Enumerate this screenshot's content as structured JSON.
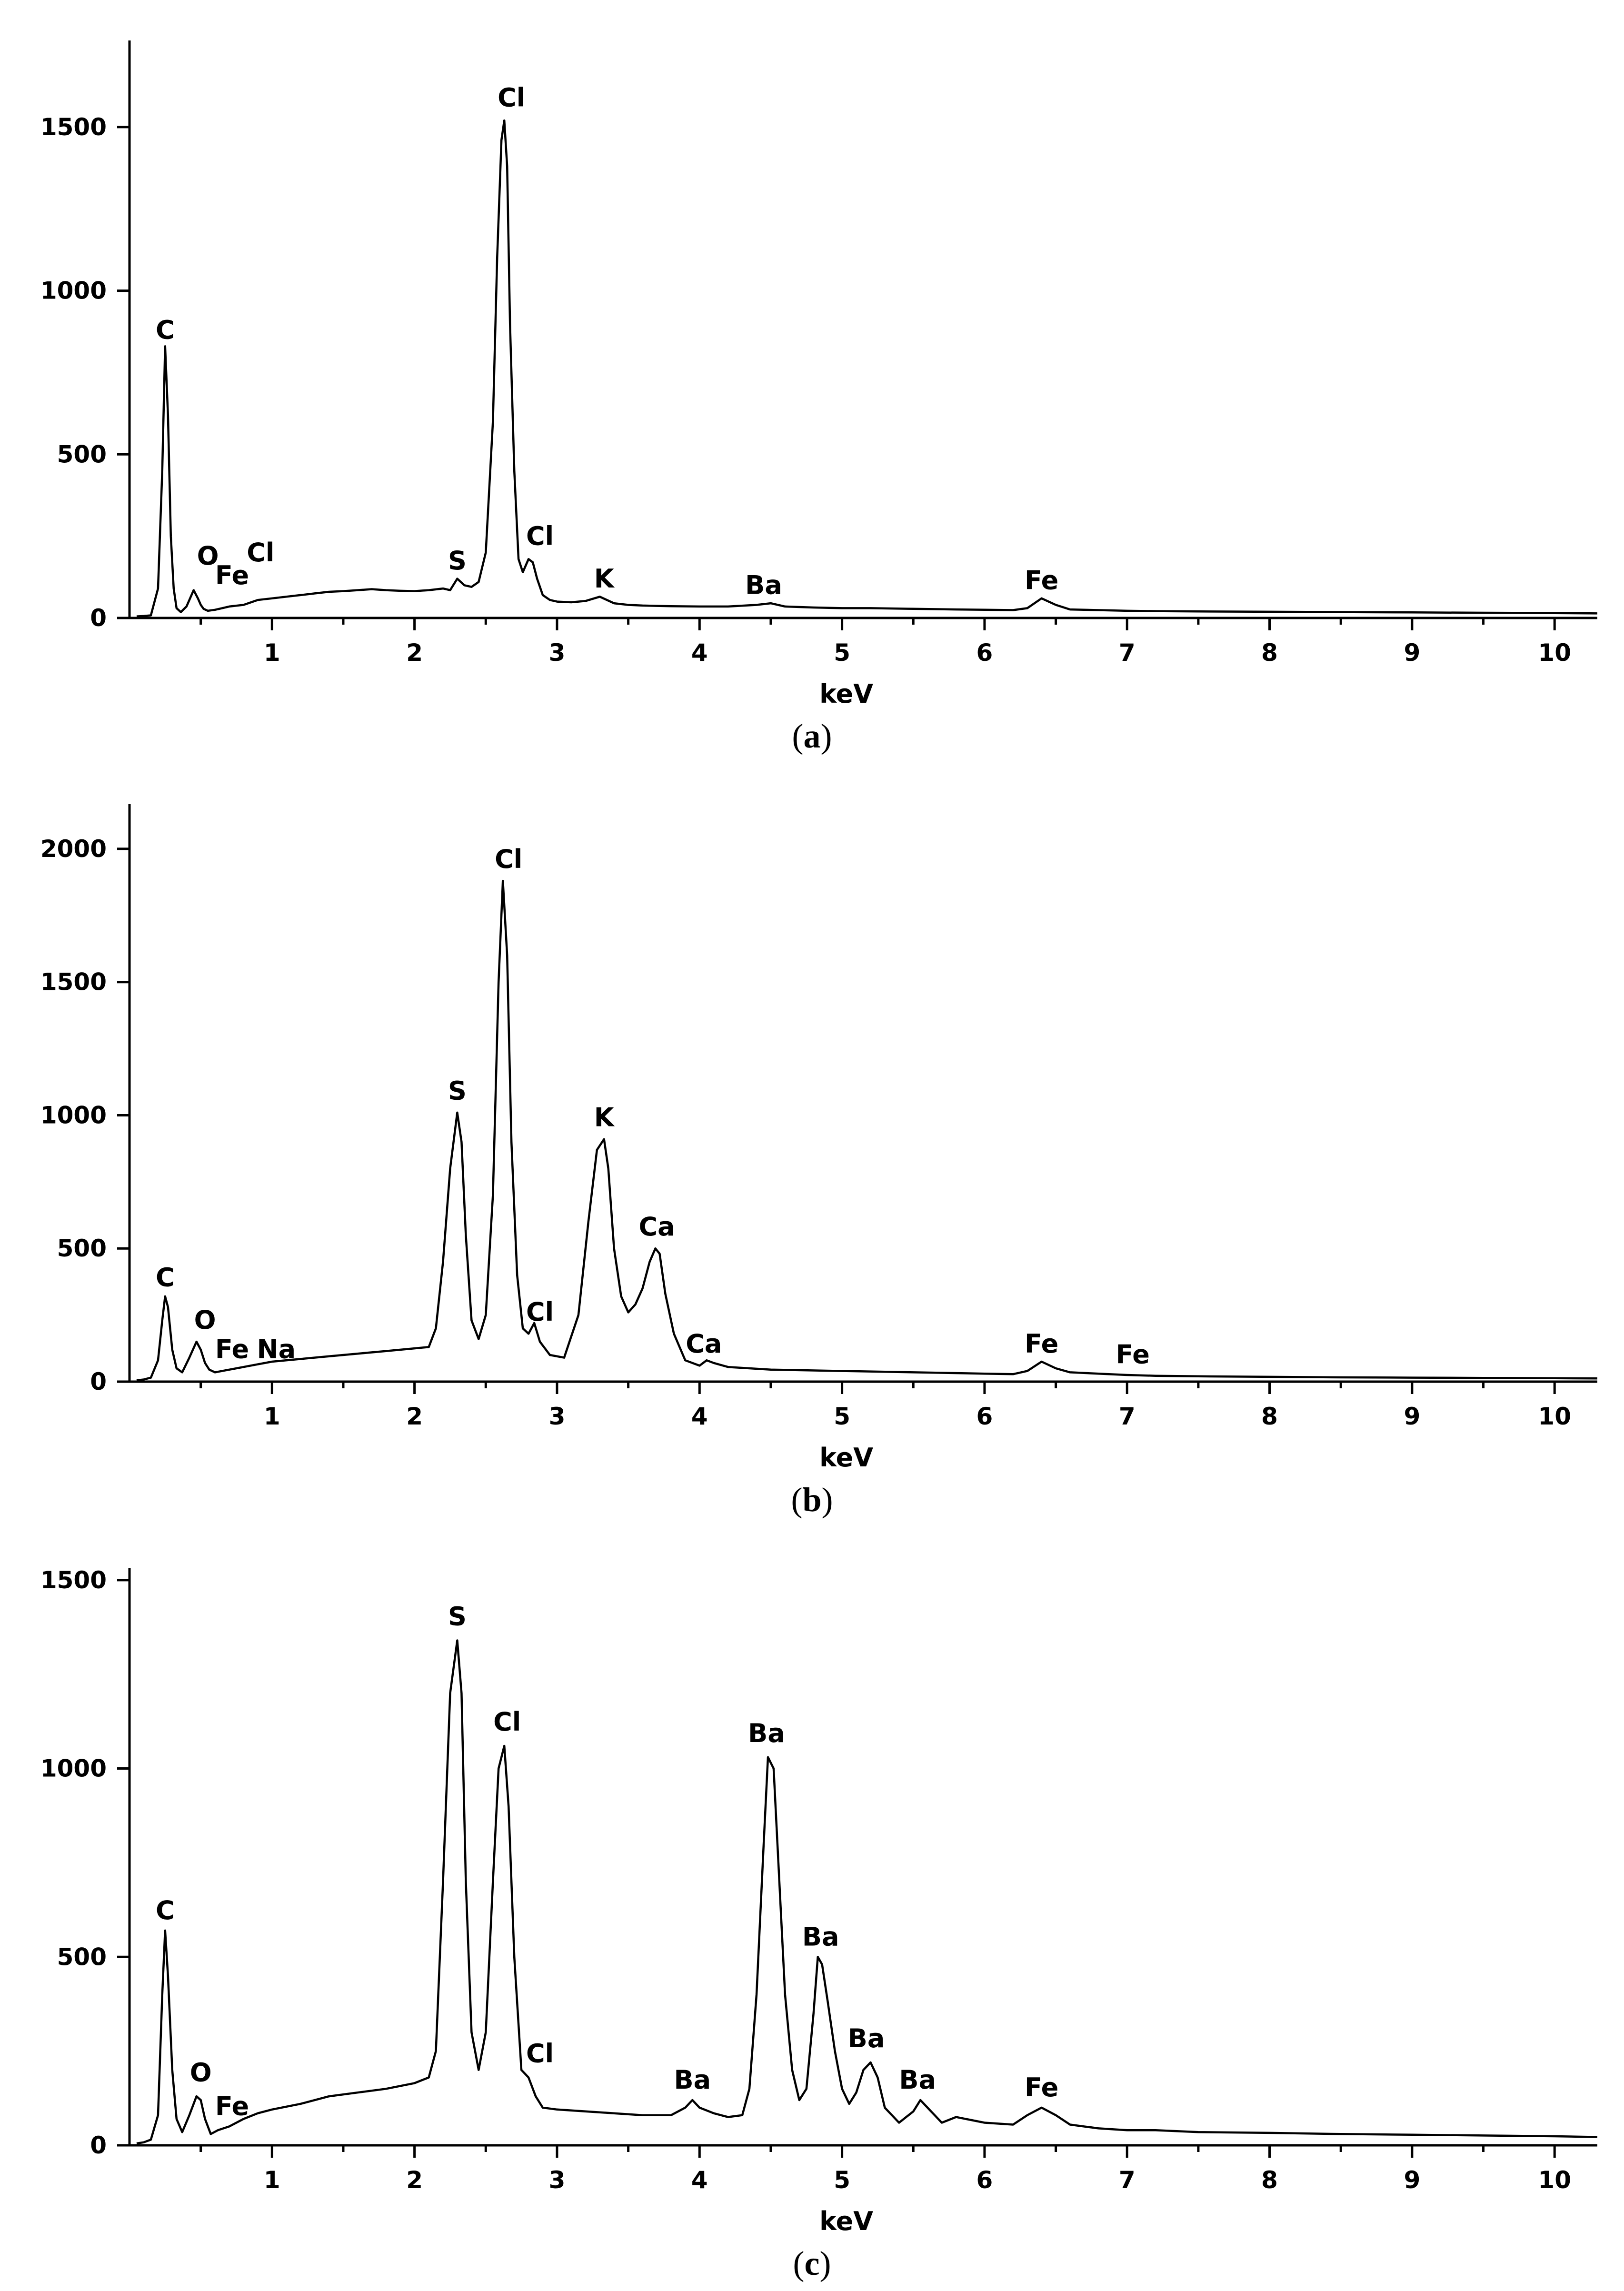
{
  "chart_data": [
    {
      "type": "line",
      "caption_label": "a",
      "xlabel": "keV",
      "ylabel": "",
      "xlim": [
        0,
        10.3
      ],
      "ylim": [
        0,
        1750
      ],
      "x_ticks": [
        1,
        2,
        3,
        4,
        5,
        6,
        7,
        8,
        9,
        10
      ],
      "y_ticks": [
        0,
        500,
        1000,
        1500
      ],
      "series": [
        {
          "x": [
            0.05,
            0.1,
            0.15,
            0.2,
            0.23,
            0.25,
            0.27,
            0.29,
            0.31,
            0.33,
            0.36,
            0.4,
            0.45,
            0.48,
            0.5,
            0.52,
            0.55,
            0.6,
            0.65,
            0.7,
            0.8,
            0.9,
            1.0,
            1.1,
            1.2,
            1.3,
            1.4,
            1.5,
            1.6,
            1.7,
            1.8,
            1.9,
            2.0,
            2.1,
            2.2,
            2.25,
            2.3,
            2.35,
            2.4,
            2.45,
            2.5,
            2.55,
            2.58,
            2.61,
            2.63,
            2.65,
            2.67,
            2.7,
            2.73,
            2.76,
            2.8,
            2.83,
            2.86,
            2.9,
            2.95,
            3.0,
            3.1,
            3.2,
            3.3,
            3.35,
            3.4,
            3.5,
            3.6,
            3.7,
            3.8,
            4.0,
            4.2,
            4.4,
            4.5,
            4.6,
            4.8,
            5.0,
            5.2,
            5.5,
            5.8,
            6.0,
            6.2,
            6.3,
            6.4,
            6.5,
            6.6,
            6.8,
            7.0,
            7.2,
            7.5,
            8.0,
            8.5,
            9.0,
            9.5,
            10.0,
            10.3
          ],
          "y": [
            5,
            6,
            8,
            90,
            450,
            830,
            620,
            250,
            90,
            30,
            18,
            35,
            85,
            60,
            40,
            28,
            22,
            25,
            30,
            35,
            40,
            55,
            60,
            65,
            70,
            75,
            80,
            82,
            85,
            88,
            85,
            83,
            82,
            85,
            90,
            85,
            120,
            100,
            95,
            110,
            200,
            600,
            1100,
            1460,
            1520,
            1380,
            900,
            450,
            180,
            140,
            180,
            170,
            120,
            70,
            55,
            50,
            48,
            52,
            65,
            55,
            45,
            40,
            38,
            37,
            36,
            35,
            35,
            40,
            45,
            35,
            32,
            30,
            30,
            28,
            26,
            25,
            24,
            30,
            60,
            40,
            26,
            24,
            22,
            21,
            20,
            19,
            18,
            17,
            16,
            15,
            14
          ]
        }
      ],
      "peak_labels": [
        {
          "text": "C",
          "x": 0.25,
          "y": 830
        },
        {
          "text": "O",
          "x": 0.55,
          "y": 140
        },
        {
          "text": "Fe",
          "x": 0.72,
          "y": 80
        },
        {
          "text": "Cl",
          "x": 0.92,
          "y": 150
        },
        {
          "text": "S",
          "x": 2.3,
          "y": 125
        },
        {
          "text": "Cl",
          "x": 2.68,
          "y": 1540
        },
        {
          "text": "Cl",
          "x": 2.88,
          "y": 200
        },
        {
          "text": "K",
          "x": 3.33,
          "y": 70
        },
        {
          "text": "Ba",
          "x": 4.45,
          "y": 50
        },
        {
          "text": "Fe",
          "x": 6.4,
          "y": 65
        }
      ]
    },
    {
      "type": "line",
      "caption_label": "b",
      "xlabel": "keV",
      "ylabel": "",
      "xlim": [
        0,
        10.3
      ],
      "ylim": [
        0,
        2150
      ],
      "x_ticks": [
        1,
        2,
        3,
        4,
        5,
        6,
        7,
        8,
        9,
        10
      ],
      "y_ticks": [
        0,
        500,
        1000,
        1500,
        2000
      ],
      "series": [
        {
          "x": [
            0.05,
            0.1,
            0.15,
            0.2,
            0.23,
            0.25,
            0.27,
            0.3,
            0.33,
            0.37,
            0.42,
            0.47,
            0.5,
            0.53,
            0.56,
            0.6,
            0.65,
            0.7,
            0.8,
            0.9,
            1.0,
            1.2,
            1.4,
            1.6,
            1.8,
            2.0,
            2.1,
            2.15,
            2.2,
            2.25,
            2.3,
            2.33,
            2.36,
            2.4,
            2.45,
            2.5,
            2.55,
            2.59,
            2.62,
            2.65,
            2.68,
            2.72,
            2.76,
            2.8,
            2.84,
            2.88,
            2.95,
            3.05,
            3.15,
            3.22,
            3.28,
            3.33,
            3.36,
            3.4,
            3.45,
            3.5,
            3.55,
            3.6,
            3.65,
            3.69,
            3.72,
            3.76,
            3.82,
            3.9,
            4.0,
            4.05,
            4.1,
            4.2,
            4.5,
            5.0,
            5.5,
            6.0,
            6.2,
            6.3,
            6.4,
            6.5,
            6.6,
            6.8,
            7.0,
            7.2,
            7.5,
            8.0,
            8.5,
            9.0,
            9.5,
            10.0,
            10.3
          ],
          "y": [
            5,
            8,
            15,
            80,
            230,
            320,
            280,
            120,
            50,
            35,
            90,
            150,
            120,
            70,
            45,
            35,
            40,
            45,
            55,
            65,
            75,
            85,
            95,
            105,
            115,
            125,
            130,
            200,
            450,
            800,
            1010,
            900,
            550,
            230,
            160,
            250,
            700,
            1500,
            1880,
            1600,
            900,
            400,
            200,
            180,
            220,
            150,
            100,
            90,
            250,
            600,
            870,
            910,
            800,
            500,
            320,
            260,
            290,
            350,
            450,
            500,
            480,
            330,
            180,
            80,
            60,
            80,
            70,
            55,
            45,
            40,
            35,
            30,
            28,
            40,
            75,
            50,
            35,
            30,
            25,
            22,
            20,
            18,
            16,
            15,
            14,
            13,
            12
          ]
        }
      ],
      "peak_labels": [
        {
          "text": "C",
          "x": 0.25,
          "y": 330
        },
        {
          "text": "O",
          "x": 0.53,
          "y": 170
        },
        {
          "text": "Fe",
          "x": 0.72,
          "y": 60
        },
        {
          "text": "Na",
          "x": 1.03,
          "y": 60
        },
        {
          "text": "S",
          "x": 2.3,
          "y": 1030
        },
        {
          "text": "Cl",
          "x": 2.66,
          "y": 1900
        },
        {
          "text": "Cl",
          "x": 2.88,
          "y": 200
        },
        {
          "text": "K",
          "x": 3.33,
          "y": 930
        },
        {
          "text": "Ca",
          "x": 3.7,
          "y": 520
        },
        {
          "text": "Ca",
          "x": 4.03,
          "y": 80
        },
        {
          "text": "Fe",
          "x": 6.4,
          "y": 80
        },
        {
          "text": "Fe",
          "x": 7.04,
          "y": 40
        }
      ]
    },
    {
      "type": "line",
      "caption_label": "c",
      "xlabel": "keV",
      "ylabel": "",
      "xlim": [
        0,
        10.3
      ],
      "ylim": [
        0,
        1520
      ],
      "x_ticks": [
        1,
        2,
        3,
        4,
        5,
        6,
        7,
        8,
        9,
        10
      ],
      "y_ticks": [
        0,
        500,
        1000,
        1500
      ],
      "series": [
        {
          "x": [
            0.05,
            0.1,
            0.15,
            0.2,
            0.23,
            0.25,
            0.27,
            0.3,
            0.33,
            0.37,
            0.42,
            0.47,
            0.5,
            0.53,
            0.57,
            0.62,
            0.7,
            0.8,
            0.9,
            1.0,
            1.2,
            1.4,
            1.6,
            1.8,
            2.0,
            2.1,
            2.15,
            2.2,
            2.25,
            2.3,
            2.33,
            2.36,
            2.4,
            2.45,
            2.5,
            2.55,
            2.59,
            2.63,
            2.66,
            2.7,
            2.75,
            2.8,
            2.85,
            2.9,
            3.0,
            3.2,
            3.4,
            3.6,
            3.8,
            3.9,
            3.95,
            4.0,
            4.1,
            4.2,
            4.3,
            4.35,
            4.4,
            4.45,
            4.48,
            4.52,
            4.56,
            4.6,
            4.65,
            4.7,
            4.75,
            4.8,
            4.83,
            4.86,
            4.9,
            4.95,
            5.0,
            5.05,
            5.1,
            5.15,
            5.2,
            5.25,
            5.3,
            5.4,
            5.5,
            5.55,
            5.6,
            5.7,
            5.8,
            6.0,
            6.2,
            6.3,
            6.4,
            6.5,
            6.6,
            6.8,
            7.0,
            7.2,
            7.5,
            8.0,
            8.5,
            9.0,
            9.5,
            10.0,
            10.3
          ],
          "y": [
            5,
            8,
            15,
            80,
            400,
            570,
            450,
            200,
            70,
            35,
            80,
            130,
            120,
            70,
            30,
            40,
            50,
            70,
            85,
            95,
            110,
            130,
            140,
            150,
            165,
            180,
            250,
            700,
            1200,
            1340,
            1200,
            700,
            300,
            200,
            300,
            700,
            1000,
            1060,
            900,
            500,
            200,
            180,
            130,
            100,
            95,
            90,
            85,
            80,
            80,
            100,
            120,
            100,
            85,
            75,
            80,
            150,
            400,
            800,
            1030,
            1000,
            700,
            400,
            200,
            120,
            150,
            350,
            500,
            480,
            380,
            250,
            150,
            110,
            140,
            200,
            220,
            180,
            100,
            60,
            90,
            120,
            100,
            60,
            75,
            60,
            55,
            80,
            100,
            80,
            55,
            45,
            40,
            40,
            35,
            33,
            30,
            28,
            26,
            24,
            22
          ]
        }
      ],
      "peak_labels": [
        {
          "text": "C",
          "x": 0.25,
          "y": 580
        },
        {
          "text": "O",
          "x": 0.5,
          "y": 150
        },
        {
          "text": "Fe",
          "x": 0.72,
          "y": 60
        },
        {
          "text": "S",
          "x": 2.3,
          "y": 1360
        },
        {
          "text": "Cl",
          "x": 2.65,
          "y": 1080
        },
        {
          "text": "Cl",
          "x": 2.88,
          "y": 200
        },
        {
          "text": "Ba",
          "x": 3.95,
          "y": 130
        },
        {
          "text": "Ba",
          "x": 4.47,
          "y": 1050
        },
        {
          "text": "Ba",
          "x": 4.85,
          "y": 510
        },
        {
          "text": "Ba",
          "x": 5.17,
          "y": 240
        },
        {
          "text": "Ba",
          "x": 5.53,
          "y": 130
        },
        {
          "text": "Fe",
          "x": 6.4,
          "y": 110
        }
      ]
    }
  ],
  "captions": {
    "panel0": {
      "open": "(",
      "label": "a",
      "close": ")"
    },
    "panel1": {
      "open": "(",
      "label": "b",
      "close": ")"
    },
    "panel2": {
      "open": "(",
      "label": "c",
      "close": ")"
    }
  }
}
